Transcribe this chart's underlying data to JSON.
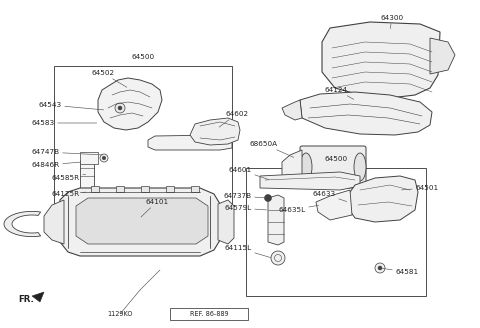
{
  "bg_color": "#ffffff",
  "line_color": "#404040",
  "text_color": "#222222",
  "box1_label": "64500",
  "box2_label": "64500",
  "fr_label": "FR.",
  "ref_label": "REF. 86-889",
  "code_label": "1129KO",
  "figsize": [
    4.8,
    3.28
  ],
  "dpi": 100
}
